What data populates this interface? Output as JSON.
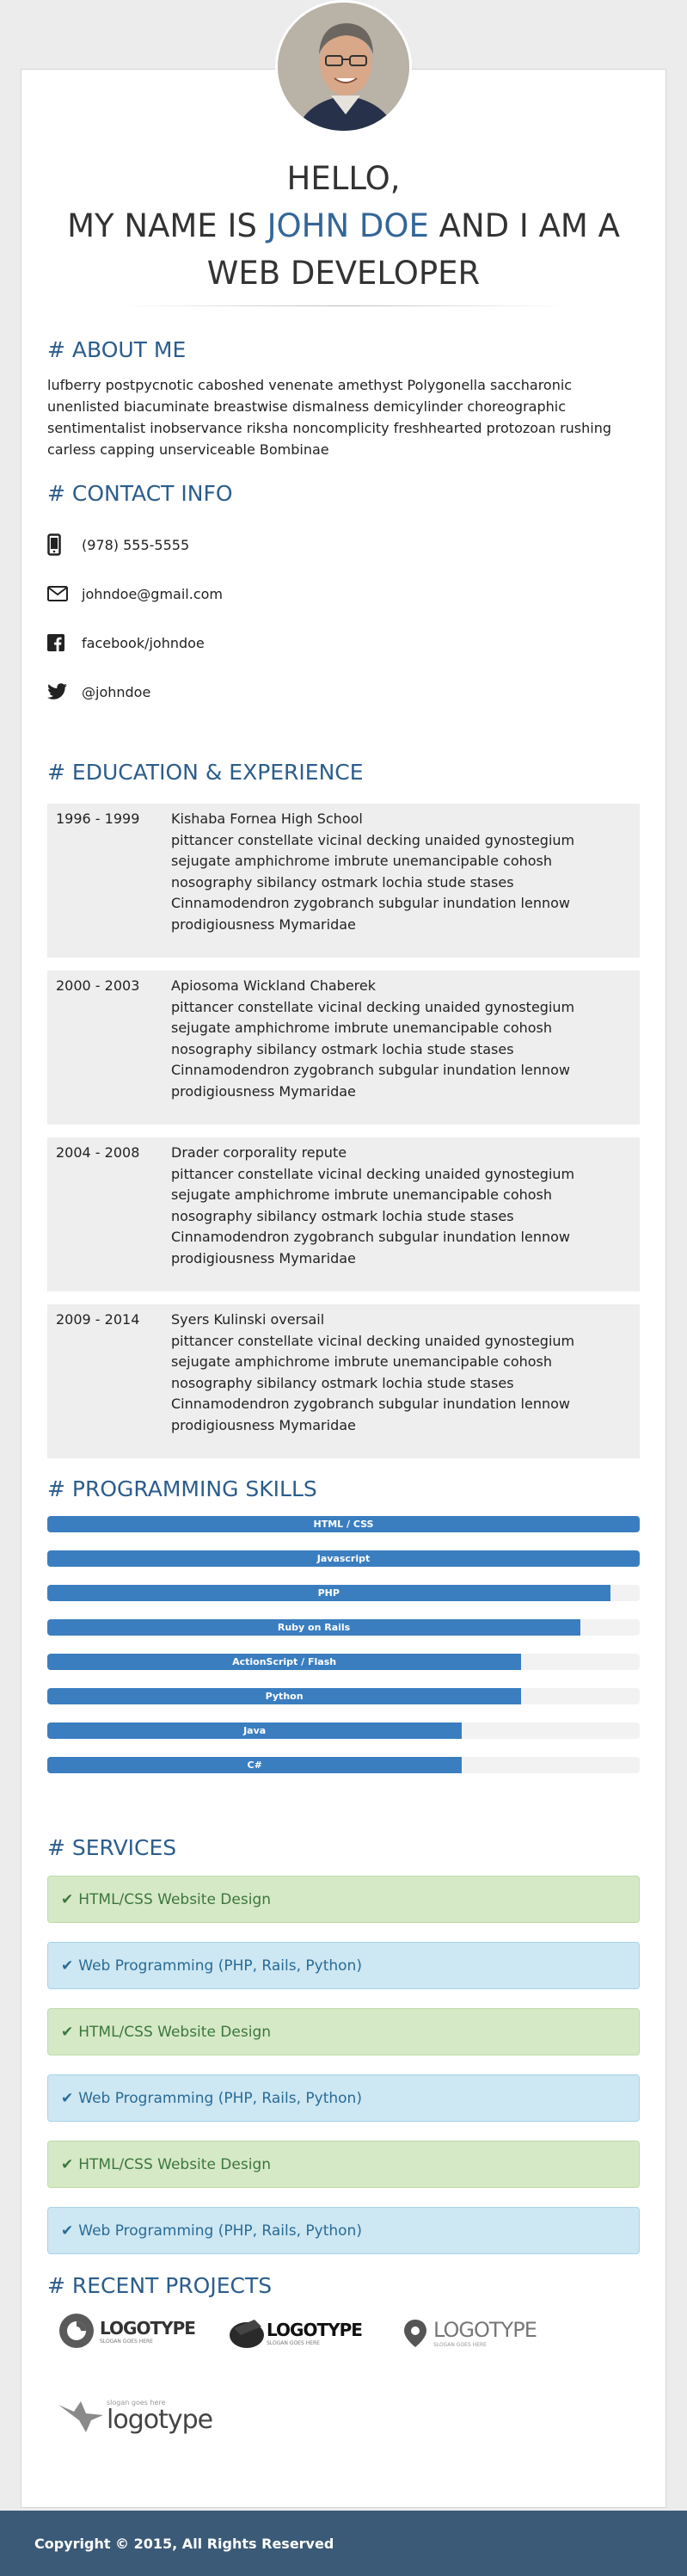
{
  "hero": {
    "line1": "HELLO,",
    "line2_pre": "MY NAME IS ",
    "line2_name": "JOHN DOE",
    "line2_post": " AND I AM A",
    "line3": "WEB DEVELOPER"
  },
  "about": {
    "title": "# ABOUT ME",
    "text": "lufberry postpycnotic caboshed venenate amethyst Polygonella saccharonic unenlisted biacuminate breastwise dismalness demicylinder choreographic sentimentalist inobservance riksha noncomplicity freshhearted protozoan rushing carless capping unserviceable Bombinae"
  },
  "contact": {
    "title": "# CONTACT INFO",
    "items": [
      {
        "icon": "phone-icon",
        "text": "(978) 555-5555"
      },
      {
        "icon": "envelope-icon",
        "text": "johndoe@gmail.com"
      },
      {
        "icon": "facebook-icon",
        "text": "facebook/johndoe"
      },
      {
        "icon": "twitter-icon",
        "text": "@johndoe"
      }
    ]
  },
  "education": {
    "title": "# EDUCATION & EXPERIENCE",
    "items": [
      {
        "years": "1996 - 1999",
        "place": "Kishaba Fornea High School",
        "desc": "pittancer constellate vicinal decking unaided gynostegium sejugate amphichrome imbrute unemancipable cohosh nosography sibilancy ostmark lochia stude stases Cinnamodendron zygobranch subgular inundation lennow prodigiousness Mymaridae"
      },
      {
        "years": "2000 - 2003",
        "place": "Apiosoma Wickland Chaberek",
        "desc": "pittancer constellate vicinal decking unaided gynostegium sejugate amphichrome imbrute unemancipable cohosh nosography sibilancy ostmark lochia stude stases Cinnamodendron zygobranch subgular inundation lennow prodigiousness Mymaridae"
      },
      {
        "years": "2004 - 2008",
        "place": "Drader corporality repute",
        "desc": "pittancer constellate vicinal decking unaided gynostegium sejugate amphichrome imbrute unemancipable cohosh nosography sibilancy ostmark lochia stude stases Cinnamodendron zygobranch subgular inundation lennow prodigiousness Mymaridae"
      },
      {
        "years": "2009 - 2014",
        "place": "Syers Kulinski oversail",
        "desc": "pittancer constellate vicinal decking unaided gynostegium sejugate amphichrome imbrute unemancipable cohosh nosography sibilancy ostmark lochia stude stases Cinnamodendron zygobranch subgular inundation lennow prodigiousness Mymaridae"
      }
    ]
  },
  "skills": {
    "title": "# PROGRAMMING SKILLS",
    "accent": "#3a7ec0",
    "items": [
      {
        "label": "HTML / CSS",
        "percent": 100
      },
      {
        "label": "Javascript",
        "percent": 100
      },
      {
        "label": "PHP",
        "percent": 95
      },
      {
        "label": "Ruby on Rails",
        "percent": 90
      },
      {
        "label": "ActionScript / Flash",
        "percent": 80
      },
      {
        "label": "Python",
        "percent": 80
      },
      {
        "label": "Java",
        "percent": 70
      },
      {
        "label": "C#",
        "percent": 70
      }
    ]
  },
  "services": {
    "title": "# SERVICES",
    "items": [
      {
        "label": "HTML/CSS Website Design",
        "style": "green"
      },
      {
        "label": "Web Programming (PHP, Rails, Python)",
        "style": "blue"
      },
      {
        "label": "HTML/CSS Website Design",
        "style": "green"
      },
      {
        "label": "Web Programming (PHP, Rails, Python)",
        "style": "blue"
      },
      {
        "label": "HTML/CSS Website Design",
        "style": "green"
      },
      {
        "label": "Web Programming (PHP, Rails, Python)",
        "style": "blue"
      }
    ]
  },
  "projects": {
    "title": "# RECENT PROJECTS",
    "logos": [
      {
        "name": "LOGOTYPE",
        "slogan": "SLOGAN GOES HERE"
      },
      {
        "name": "LOGOTYPE",
        "slogan": "SLOGAN GOES HERE"
      },
      {
        "name": "LOGOTYPE",
        "slogan": "SLOGAN GOES HERE"
      },
      {
        "name": "logotype",
        "slogan": "slogan goes here"
      }
    ]
  },
  "footer": {
    "text": "Copyright © 2015, All Rights Reserved"
  }
}
